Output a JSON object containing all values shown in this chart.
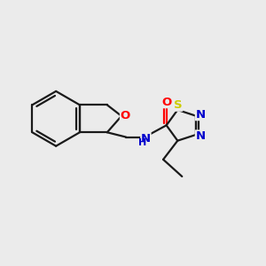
{
  "background_color": "#ebebeb",
  "bond_color": "#1a1a1a",
  "atom_colors": {
    "O": "#ff0000",
    "N": "#0000cc",
    "S": "#cccc00",
    "NH": "#0000cc",
    "double_O": "#ff0000"
  },
  "figsize": [
    3.0,
    3.0
  ],
  "dpi": 100,
  "bond_lw": 1.6,
  "font_size": 9.5
}
